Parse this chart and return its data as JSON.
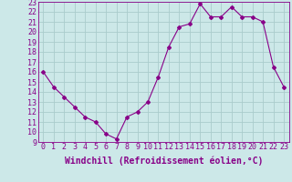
{
  "x": [
    0,
    1,
    2,
    3,
    4,
    5,
    6,
    7,
    8,
    9,
    10,
    11,
    12,
    13,
    14,
    15,
    16,
    17,
    18,
    19,
    20,
    21,
    22,
    23
  ],
  "y": [
    16.0,
    14.5,
    13.5,
    12.5,
    11.5,
    11.0,
    9.8,
    9.3,
    11.5,
    12.0,
    13.0,
    15.5,
    18.5,
    20.5,
    20.8,
    22.8,
    21.5,
    21.5,
    22.5,
    21.5,
    21.5,
    21.0,
    16.5,
    14.5
  ],
  "ylim": [
    9,
    23
  ],
  "yticks": [
    9,
    10,
    11,
    12,
    13,
    14,
    15,
    16,
    17,
    18,
    19,
    20,
    21,
    22,
    23
  ],
  "xticks": [
    0,
    1,
    2,
    3,
    4,
    5,
    6,
    7,
    8,
    9,
    10,
    11,
    12,
    13,
    14,
    15,
    16,
    17,
    18,
    19,
    20,
    21,
    22,
    23
  ],
  "xlabel": "Windchill (Refroidissement éolien,°C)",
  "line_color": "#880088",
  "marker": "D",
  "marker_size": 2,
  "bg_color": "#cce8e8",
  "grid_color": "#aacccc",
  "spine_color": "#880088",
  "tick_label_fontsize": 6,
  "xlabel_fontsize": 7
}
